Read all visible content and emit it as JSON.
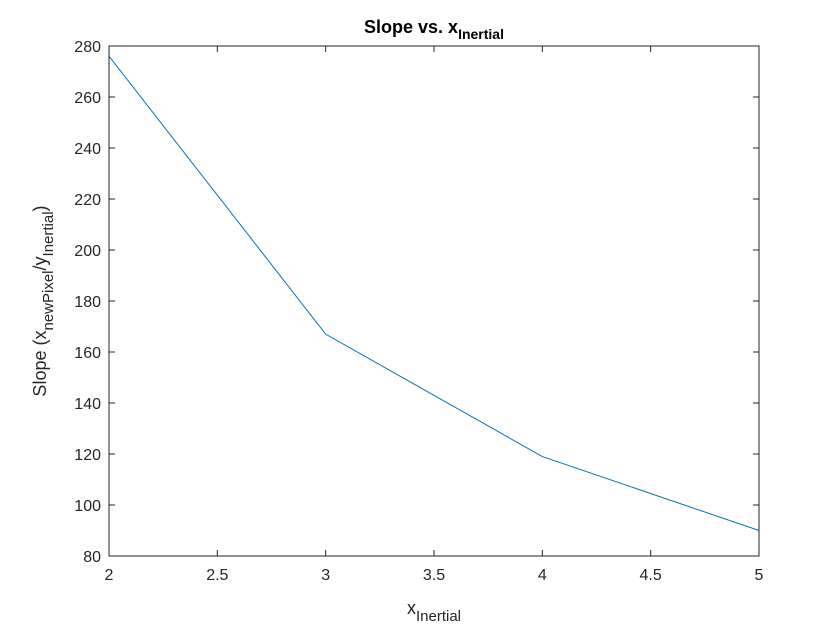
{
  "chart_data": {
    "type": "line",
    "title": {
      "main": "Slope vs. x",
      "sub": "Inertial"
    },
    "xlabel": {
      "main": "x",
      "sub": "Inertial"
    },
    "ylabel": {
      "prefix": "Slope (x",
      "sub1": "newPixel",
      "mid": "/y",
      "sub2": "Inertial",
      "suffix": ")"
    },
    "xlim": [
      2,
      5
    ],
    "ylim": [
      80,
      280
    ],
    "xticks": [
      2,
      2.5,
      3,
      3.5,
      4,
      4.5,
      5
    ],
    "xtick_labels": [
      "2",
      "2.5",
      "3",
      "3.5",
      "4",
      "4.5",
      "5"
    ],
    "yticks": [
      80,
      100,
      120,
      140,
      160,
      180,
      200,
      220,
      240,
      260,
      280
    ],
    "ytick_labels": [
      "80",
      "100",
      "120",
      "140",
      "160",
      "180",
      "200",
      "220",
      "240",
      "260",
      "280"
    ],
    "grid": false,
    "series": [
      {
        "x": [
          2,
          3,
          4,
          5
        ],
        "y": [
          276,
          167,
          119,
          90
        ],
        "color": "#0072BD"
      }
    ]
  }
}
